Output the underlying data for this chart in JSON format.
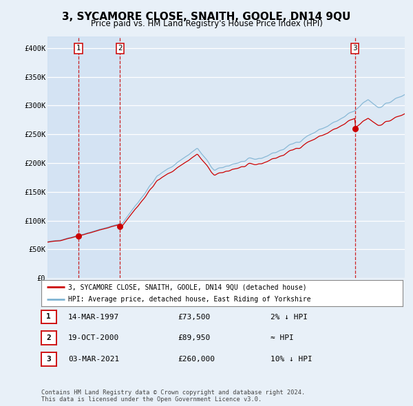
{
  "title": "3, SYCAMORE CLOSE, SNAITH, GOOLE, DN14 9QU",
  "subtitle": "Price paid vs. HM Land Registry's House Price Index (HPI)",
  "background_color": "#e8f0f8",
  "plot_bg_color": "#dce8f4",
  "ylim": [
    0,
    420000
  ],
  "yticks": [
    0,
    50000,
    100000,
    150000,
    200000,
    250000,
    300000,
    350000,
    400000
  ],
  "ytick_labels": [
    "£0",
    "£50K",
    "£100K",
    "£150K",
    "£200K",
    "£250K",
    "£300K",
    "£350K",
    "£400K"
  ],
  "sale_dates": [
    1997.2,
    2000.8,
    2021.17
  ],
  "sale_prices": [
    73500,
    89950,
    260000
  ],
  "sale_labels": [
    "1",
    "2",
    "3"
  ],
  "vline_color": "#cc0000",
  "sale_color": "#cc0000",
  "hpi_line_color": "#7fb3d3",
  "property_line_color": "#cc0000",
  "legend_entries": [
    "3, SYCAMORE CLOSE, SNAITH, GOOLE, DN14 9QU (detached house)",
    "HPI: Average price, detached house, East Riding of Yorkshire"
  ],
  "table_rows": [
    [
      "1",
      "14-MAR-1997",
      "£73,500",
      "2% ↓ HPI"
    ],
    [
      "2",
      "19-OCT-2000",
      "£89,950",
      "≈ HPI"
    ],
    [
      "3",
      "03-MAR-2021",
      "£260,000",
      "10% ↓ HPI"
    ]
  ],
  "footnote": "Contains HM Land Registry data © Crown copyright and database right 2024.\nThis data is licensed under the Open Government Licence v3.0.",
  "xmin": 1994.5,
  "xmax": 2025.5
}
